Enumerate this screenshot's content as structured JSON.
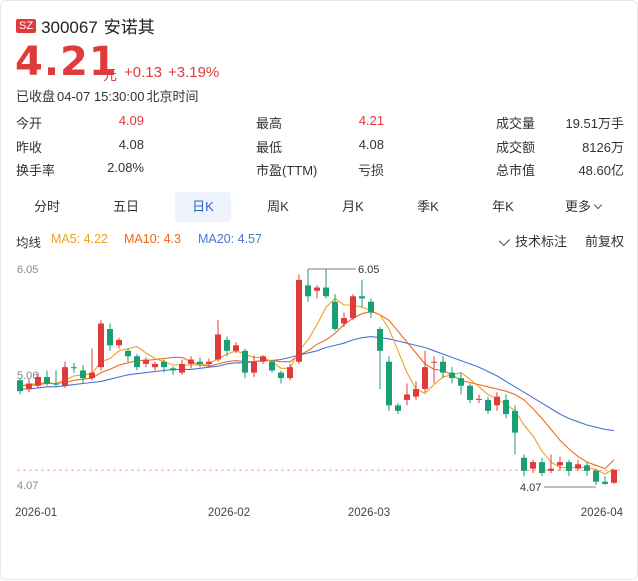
{
  "market": "SZ",
  "stock": {
    "code": "300067",
    "name": "安诺其"
  },
  "price": {
    "value": "4.21",
    "unit": "元",
    "change": "+0.13",
    "change_pct": "+3.19%"
  },
  "status": {
    "text": "已收盘",
    "datetime": "04-07 15:30:00",
    "timezone": "北京时间"
  },
  "stats": [
    {
      "label": "今开",
      "value": "4.09",
      "color": "#e03b3b"
    },
    {
      "label": "最高",
      "value": "4.21",
      "color": "#e03b3b"
    },
    {
      "label": "成交量",
      "value": "19.51万手",
      "color": "#333333"
    },
    {
      "label": "昨收",
      "value": "4.08",
      "color": "#333333"
    },
    {
      "label": "最低",
      "value": "4.08",
      "color": "#333333"
    },
    {
      "label": "成交额",
      "value": "8126万",
      "color": "#333333"
    },
    {
      "label": "换手率",
      "value": "2.08%",
      "color": "#333333"
    },
    {
      "label": "市盈(TTM)",
      "value": "亏损",
      "color": "#333333"
    },
    {
      "label": "总市值",
      "value": "48.60亿",
      "color": "#333333"
    }
  ],
  "tabs": [
    {
      "label": "分时",
      "active": false
    },
    {
      "label": "五日",
      "active": false
    },
    {
      "label": "日K",
      "active": true
    },
    {
      "label": "周K",
      "active": false
    },
    {
      "label": "月K",
      "active": false
    },
    {
      "label": "季K",
      "active": false
    },
    {
      "label": "年K",
      "active": false
    },
    {
      "label": "更多",
      "active": false
    }
  ],
  "indicators": {
    "label": "均线",
    "ma5": {
      "text": "MA5: 4.22",
      "color": "#f0a020"
    },
    "ma10": {
      "text": "MA10: 4.3",
      "color": "#ee6a1a"
    },
    "ma20": {
      "text": "MA20: 4.57",
      "color": "#4a72d8"
    }
  },
  "tools": {
    "tech": "技术标注",
    "adjust": "前复权"
  },
  "colors": {
    "up": "#e03b3b",
    "down": "#1a9e73",
    "accent": "#2e63d3"
  },
  "chart_data": {
    "type": "candlestick",
    "y_ticks": [
      "6.05",
      "5.06",
      "4.07"
    ],
    "ylim": [
      4.07,
      6.05
    ],
    "x_ticks": [
      "2026-01",
      "2026-02",
      "2026-03",
      "2026-04"
    ],
    "max_marker": "6.05",
    "min_marker": "4.07",
    "last_close": 4.21,
    "candles": [
      [
        5.03,
        4.93,
        5.05,
        4.9
      ],
      [
        4.95,
        5.0,
        5.04,
        4.92
      ],
      [
        4.98,
        5.06,
        5.1,
        4.96
      ],
      [
        5.06,
        5.0,
        5.12,
        4.98
      ],
      [
        5.0,
        4.99,
        5.12,
        4.97
      ],
      [
        4.98,
        5.15,
        5.2,
        4.96
      ],
      [
        5.15,
        5.14,
        5.19,
        5.1
      ],
      [
        5.12,
        5.05,
        5.17,
        5.0
      ],
      [
        5.05,
        5.1,
        5.32,
        5.03
      ],
      [
        5.15,
        5.55,
        5.58,
        5.12
      ],
      [
        5.5,
        5.35,
        5.55,
        5.3
      ],
      [
        5.35,
        5.4,
        5.42,
        5.32
      ],
      [
        5.3,
        5.25,
        5.32,
        5.2
      ],
      [
        5.25,
        5.15,
        5.27,
        5.12
      ],
      [
        5.18,
        5.22,
        5.24,
        5.15
      ],
      [
        5.15,
        5.18,
        5.2,
        5.12
      ],
      [
        5.2,
        5.15,
        5.22,
        5.1
      ],
      [
        5.14,
        5.12,
        5.16,
        5.08
      ],
      [
        5.1,
        5.18,
        5.22,
        5.08
      ],
      [
        5.18,
        5.22,
        5.25,
        5.14
      ],
      [
        5.2,
        5.18,
        5.24,
        5.15
      ],
      [
        5.18,
        5.2,
        5.23,
        5.15
      ],
      [
        5.22,
        5.45,
        5.58,
        5.2
      ],
      [
        5.4,
        5.3,
        5.43,
        5.25
      ],
      [
        5.3,
        5.35,
        5.38,
        5.28
      ],
      [
        5.3,
        5.1,
        5.32,
        5.05
      ],
      [
        5.1,
        5.2,
        5.26,
        5.06
      ],
      [
        5.2,
        5.25,
        5.26,
        5.18
      ],
      [
        5.2,
        5.12,
        5.22,
        5.1
      ],
      [
        5.1,
        5.05,
        5.12,
        5.0
      ],
      [
        5.05,
        5.15,
        5.18,
        5.03
      ],
      [
        5.2,
        5.95,
        6.0,
        5.18
      ],
      [
        5.9,
        5.8,
        6.05,
        5.75
      ],
      [
        5.85,
        5.88,
        5.9,
        5.78
      ],
      [
        5.88,
        5.8,
        6.05,
        5.78
      ],
      [
        5.75,
        5.5,
        5.82,
        5.48
      ],
      [
        5.55,
        5.6,
        5.65,
        5.52
      ],
      [
        5.6,
        5.8,
        5.82,
        5.58
      ],
      [
        5.8,
        5.78,
        5.95,
        5.7
      ],
      [
        5.75,
        5.65,
        5.78,
        5.6
      ],
      [
        5.5,
        5.3,
        5.52,
        4.95
      ],
      [
        5.2,
        4.8,
        5.25,
        4.75
      ],
      [
        4.8,
        4.75,
        4.82,
        4.72
      ],
      [
        4.85,
        4.9,
        5.0,
        4.8
      ],
      [
        4.88,
        4.95,
        5.02,
        4.85
      ],
      [
        4.95,
        5.15,
        5.3,
        4.92
      ],
      [
        5.2,
        5.2,
        5.25,
        5.0
      ],
      [
        5.2,
        5.1,
        5.25,
        5.05
      ],
      [
        5.1,
        5.05,
        5.15,
        5.0
      ],
      [
        5.05,
        4.98,
        5.1,
        4.9
      ],
      [
        4.98,
        4.85,
        5.0,
        4.82
      ],
      [
        4.85,
        4.86,
        4.9,
        4.82
      ],
      [
        4.85,
        4.75,
        4.88,
        4.72
      ],
      [
        4.8,
        4.88,
        4.92,
        4.75
      ],
      [
        4.85,
        4.72,
        4.9,
        4.68
      ],
      [
        4.75,
        4.55,
        4.8,
        4.35
      ],
      [
        4.32,
        4.2,
        4.35,
        4.15
      ],
      [
        4.22,
        4.28,
        4.3,
        4.18
      ],
      [
        4.28,
        4.18,
        4.32,
        4.15
      ],
      [
        4.2,
        4.22,
        4.35,
        4.18
      ],
      [
        4.25,
        4.28,
        4.33,
        4.2
      ],
      [
        4.28,
        4.2,
        4.3,
        4.15
      ],
      [
        4.22,
        4.26,
        4.3,
        4.2
      ],
      [
        4.25,
        4.2,
        4.28,
        4.15
      ],
      [
        4.2,
        4.1,
        4.22,
        4.07
      ],
      [
        4.1,
        4.08,
        4.15,
        4.07
      ],
      [
        4.09,
        4.21,
        4.21,
        4.08
      ]
    ],
    "ma5": [
      4.98,
      4.99,
      5.0,
      5.01,
      5.0,
      5.03,
      5.07,
      5.08,
      5.09,
      5.2,
      5.23,
      5.3,
      5.32,
      5.34,
      5.28,
      5.23,
      5.2,
      5.17,
      5.17,
      5.17,
      5.17,
      5.18,
      5.23,
      5.27,
      5.3,
      5.27,
      5.24,
      5.24,
      5.2,
      5.14,
      5.14,
      5.3,
      5.4,
      5.54,
      5.7,
      5.78,
      5.72,
      5.72,
      5.7,
      5.67,
      5.63,
      5.5,
      5.3,
      5.1,
      4.95,
      4.91,
      4.99,
      5.06,
      5.08,
      5.1,
      5.04,
      4.97,
      4.9,
      4.86,
      4.81,
      4.75,
      4.62,
      4.52,
      4.38,
      4.28,
      4.23,
      4.23,
      4.23,
      4.23,
      4.21,
      4.17,
      4.22
    ],
    "ma10": [
      4.98,
      4.98,
      4.99,
      5.0,
      5.0,
      5.01,
      5.03,
      5.04,
      5.05,
      5.1,
      5.13,
      5.17,
      5.19,
      5.21,
      5.21,
      5.22,
      5.23,
      5.24,
      5.24,
      5.2,
      5.17,
      5.16,
      5.18,
      5.2,
      5.21,
      5.2,
      5.2,
      5.21,
      5.21,
      5.2,
      5.2,
      5.26,
      5.3,
      5.36,
      5.4,
      5.46,
      5.54,
      5.6,
      5.64,
      5.66,
      5.63,
      5.58,
      5.48,
      5.38,
      5.28,
      5.18,
      5.13,
      5.12,
      5.08,
      5.03,
      5.01,
      4.99,
      4.97,
      4.95,
      4.93,
      4.9,
      4.85,
      4.77,
      4.68,
      4.58,
      4.48,
      4.4,
      4.33,
      4.28,
      4.25,
      4.22,
      4.3
    ],
    "ma20": [
      4.95,
      4.95,
      4.96,
      4.97,
      4.97,
      4.98,
      4.99,
      5.0,
      5.01,
      5.02,
      5.04,
      5.06,
      5.08,
      5.09,
      5.1,
      5.11,
      5.12,
      5.13,
      5.13,
      5.13,
      5.14,
      5.15,
      5.16,
      5.18,
      5.19,
      5.19,
      5.2,
      5.21,
      5.21,
      5.22,
      5.24,
      5.26,
      5.28,
      5.3,
      5.33,
      5.35,
      5.37,
      5.4,
      5.42,
      5.43,
      5.42,
      5.41,
      5.39,
      5.37,
      5.35,
      5.33,
      5.3,
      5.27,
      5.24,
      5.21,
      5.18,
      5.15,
      5.11,
      5.07,
      5.02,
      4.97,
      4.92,
      4.87,
      4.82,
      4.77,
      4.72,
      4.68,
      4.65,
      4.62,
      4.6,
      4.58,
      4.57
    ]
  }
}
